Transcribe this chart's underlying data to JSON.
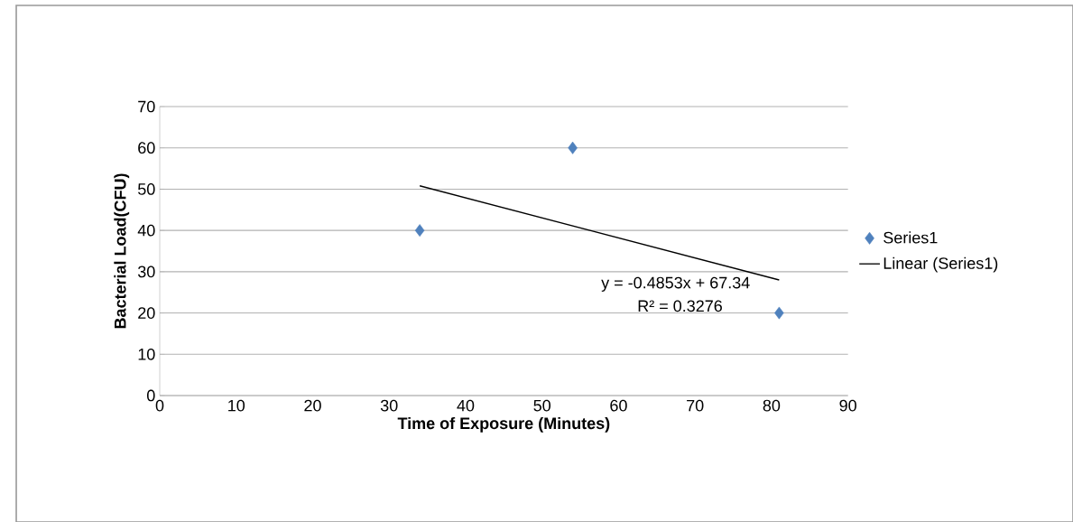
{
  "chart_data": {
    "type": "scatter",
    "xlabel": "Time of Exposure (Minutes)",
    "ylabel": "Bacterial Load(CFU)",
    "xlim": [
      0,
      90
    ],
    "xticks": [
      0,
      10,
      20,
      30,
      40,
      50,
      60,
      70,
      80,
      90
    ],
    "ylim": [
      0,
      70
    ],
    "yticks": [
      0,
      10,
      20,
      30,
      40,
      50,
      60,
      70
    ],
    "grid": "y",
    "legend": "right",
    "marker": "diamond",
    "series": [
      {
        "name": "Series1",
        "color": "#4f81bd",
        "x": [
          34,
          54,
          81
        ],
        "values": [
          40,
          60,
          20
        ]
      },
      {
        "name": "Linear (Series1)",
        "type": "line",
        "marker": "none",
        "color": "#000000",
        "x": [
          34,
          81
        ],
        "values": [
          50.8,
          28.0
        ]
      }
    ],
    "annotations": [
      "y = -0.4853x + 67.34",
      "R² = 0.3276"
    ]
  }
}
